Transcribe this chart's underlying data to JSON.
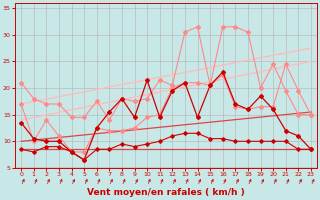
{
  "background_color": "#c8e8e8",
  "grid_color": "#aaaaaa",
  "xlabel": "Vent moyen/en rafales ( km/h )",
  "xlabel_color": "#cc0000",
  "xlabel_fontsize": 6.5,
  "tick_color": "#cc0000",
  "xlim": [
    -0.5,
    23.5
  ],
  "ylim": [
    5,
    36
  ],
  "yticks": [
    5,
    10,
    15,
    20,
    25,
    30,
    35
  ],
  "xticks": [
    0,
    1,
    2,
    3,
    4,
    5,
    6,
    7,
    8,
    9,
    10,
    11,
    12,
    13,
    14,
    15,
    16,
    17,
    18,
    19,
    20,
    21,
    22,
    23
  ],
  "line_pink_upper": {
    "x": [
      0,
      1,
      2,
      3,
      4,
      5,
      6,
      7,
      8,
      9,
      10,
      11,
      12,
      13,
      14,
      15,
      16,
      17,
      18,
      19,
      20,
      21,
      22,
      23
    ],
    "y": [
      21,
      18,
      17,
      17,
      14.5,
      14.5,
      17.5,
      14,
      18,
      17.5,
      18,
      21.5,
      20.5,
      30.5,
      31.5,
      20.5,
      31.5,
      31.5,
      30.5,
      20,
      24.5,
      19.5,
      15,
      15
    ],
    "color": "#ff8888",
    "lw": 0.8,
    "marker": "D",
    "ms": 2.0
  },
  "line_pink_lower": {
    "x": [
      0,
      1,
      2,
      3,
      4,
      5,
      6,
      7,
      8,
      9,
      10,
      11,
      12,
      13,
      14,
      15,
      16,
      17,
      18,
      19,
      20,
      21,
      22,
      23
    ],
    "y": [
      17,
      10,
      14,
      11,
      8,
      8,
      12.5,
      12,
      12,
      12.5,
      14.5,
      15,
      20,
      21,
      21,
      20.5,
      22.5,
      16.5,
      16,
      16.5,
      16.5,
      24.5,
      19.5,
      15
    ],
    "color": "#ff8888",
    "lw": 0.8,
    "marker": "D",
    "ms": 2.0
  },
  "line_trend_upper": {
    "x": [
      0,
      23
    ],
    "y": [
      17,
      27.5
    ],
    "color": "#ffbbbb",
    "lw": 1.0
  },
  "line_trend_mid": {
    "x": [
      0,
      23
    ],
    "y": [
      14,
      25
    ],
    "color": "#ffbbbb",
    "lw": 1.0
  },
  "line_trend_lower_upper": {
    "x": [
      0,
      23
    ],
    "y": [
      10,
      15.5
    ],
    "color": "#dd4444",
    "lw": 0.9
  },
  "line_trend_lower_lower": {
    "x": [
      0,
      23
    ],
    "y": [
      8.5,
      8.5
    ],
    "color": "#dd4444",
    "lw": 0.9
  },
  "line_red_upper": {
    "x": [
      0,
      1,
      2,
      3,
      4,
      5,
      6,
      7,
      8,
      9,
      10,
      11,
      12,
      13,
      14,
      15,
      16,
      17,
      18,
      19,
      20,
      21,
      22,
      23
    ],
    "y": [
      13.5,
      10.5,
      10,
      10,
      8,
      6.5,
      12.5,
      15.5,
      18,
      14.5,
      21.5,
      14.5,
      19.5,
      21,
      14.5,
      20.5,
      23,
      17,
      16,
      18.5,
      16,
      12,
      11,
      8.5
    ],
    "color": "#cc0000",
    "lw": 0.9,
    "marker": "D",
    "ms": 2.0
  },
  "line_red_lower": {
    "x": [
      0,
      1,
      2,
      3,
      4,
      5,
      6,
      7,
      8,
      9,
      10,
      11,
      12,
      13,
      14,
      15,
      16,
      17,
      18,
      19,
      20,
      21,
      22,
      23
    ],
    "y": [
      8.5,
      8,
      9,
      9,
      8,
      6.5,
      8.5,
      8.5,
      9.5,
      9,
      9.5,
      10,
      11,
      11.5,
      11.5,
      10.5,
      10.5,
      10,
      10,
      10,
      10,
      10,
      8.5,
      8.5
    ],
    "color": "#cc0000",
    "lw": 0.8,
    "marker": "D",
    "ms": 1.8
  }
}
